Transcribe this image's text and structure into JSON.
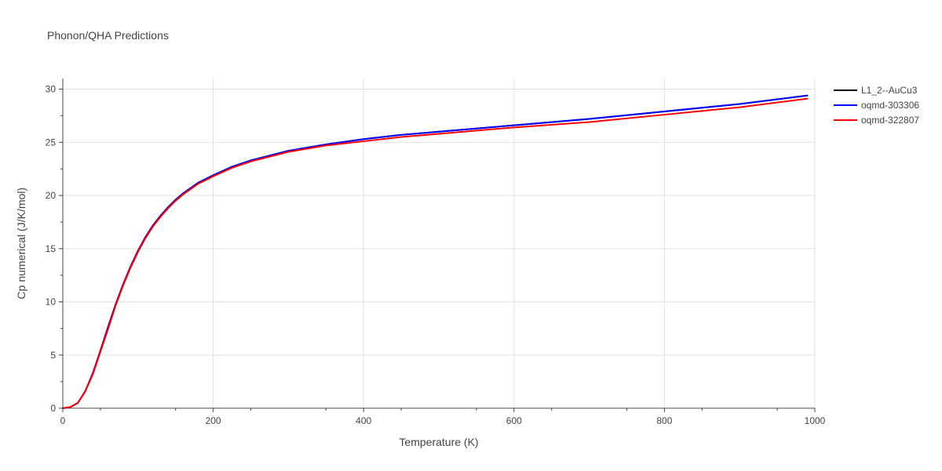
{
  "chart_data": {
    "type": "line",
    "title": "Phonon/QHA Predictions",
    "xlabel": "Temperature (K)",
    "ylabel": "Cp numerical (J/K/mol)",
    "xlim": [
      0,
      1000
    ],
    "ylim": [
      0,
      31
    ],
    "xticks": [
      0,
      200,
      400,
      600,
      800,
      1000
    ],
    "yticks": [
      0,
      5,
      10,
      15,
      20,
      25,
      30
    ],
    "grid": true,
    "legend_position": "top-right",
    "series": [
      {
        "name": "L1_2--AuCu3",
        "color": "#000000",
        "x": [
          0,
          10,
          20,
          30,
          40,
          50,
          60,
          70,
          80,
          90,
          100,
          110,
          120,
          130,
          140,
          150,
          160,
          180,
          200,
          225,
          250,
          300,
          350,
          400,
          450,
          500,
          600,
          700,
          800,
          900,
          990
        ],
        "y": [
          0,
          0.1,
          0.5,
          1.6,
          3.3,
          5.4,
          7.6,
          9.7,
          11.6,
          13.3,
          14.8,
          16.1,
          17.2,
          18.1,
          18.9,
          19.6,
          20.2,
          21.2,
          21.9,
          22.7,
          23.3,
          24.2,
          24.8,
          25.3,
          25.7,
          26.0,
          26.6,
          27.2,
          27.9,
          28.6,
          29.4
        ]
      },
      {
        "name": "oqmd-303306",
        "color": "#0000ff",
        "x": [
          0,
          10,
          20,
          30,
          40,
          50,
          60,
          70,
          80,
          90,
          100,
          110,
          120,
          130,
          140,
          150,
          160,
          180,
          200,
          225,
          250,
          300,
          350,
          400,
          450,
          500,
          600,
          700,
          800,
          900,
          990
        ],
        "y": [
          0,
          0.1,
          0.5,
          1.6,
          3.3,
          5.4,
          7.6,
          9.7,
          11.6,
          13.3,
          14.8,
          16.1,
          17.2,
          18.1,
          18.9,
          19.6,
          20.2,
          21.2,
          21.9,
          22.7,
          23.3,
          24.2,
          24.8,
          25.3,
          25.7,
          26.0,
          26.6,
          27.2,
          27.9,
          28.6,
          29.4
        ]
      },
      {
        "name": "oqmd-322807",
        "color": "#ff0000",
        "x": [
          0,
          10,
          20,
          30,
          40,
          50,
          60,
          70,
          80,
          90,
          100,
          110,
          120,
          130,
          140,
          150,
          160,
          180,
          200,
          225,
          250,
          300,
          350,
          400,
          450,
          500,
          600,
          700,
          800,
          900,
          990
        ],
        "y": [
          0,
          0.1,
          0.5,
          1.6,
          3.2,
          5.3,
          7.4,
          9.6,
          11.5,
          13.2,
          14.7,
          16.0,
          17.1,
          18.0,
          18.8,
          19.5,
          20.1,
          21.1,
          21.8,
          22.6,
          23.2,
          24.1,
          24.7,
          25.1,
          25.5,
          25.8,
          26.4,
          26.9,
          27.6,
          28.3,
          29.1
        ]
      }
    ]
  }
}
